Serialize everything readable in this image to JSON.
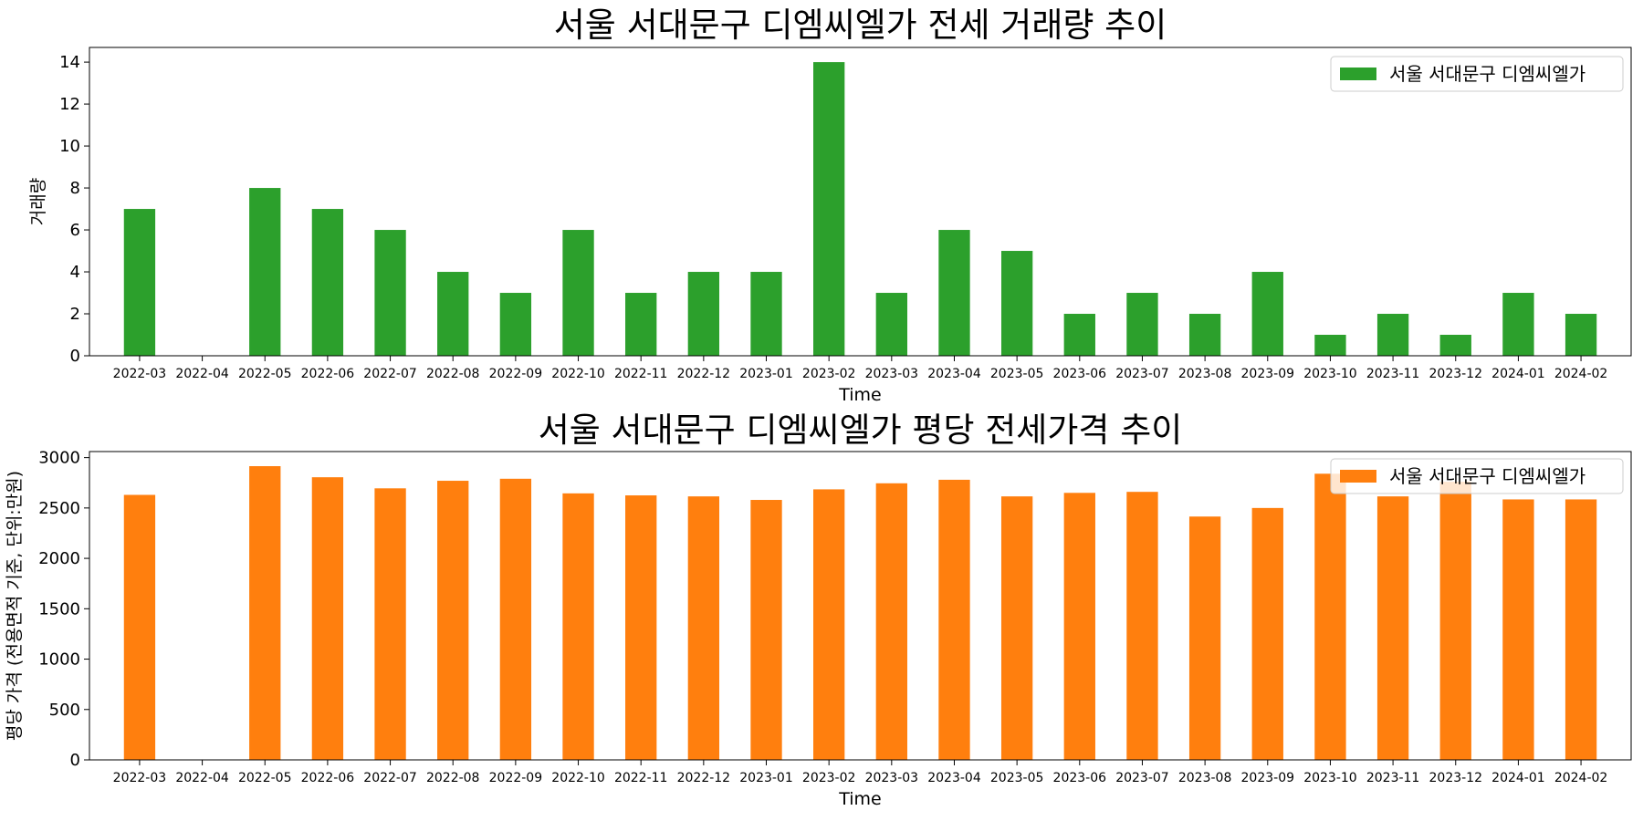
{
  "chart_data": [
    {
      "type": "bar",
      "title": "서울 서대문구 디엠씨엘가 전세 거래량 추이",
      "xlabel": "Time",
      "ylabel": "거래량",
      "categories": [
        "2022-03",
        "2022-04",
        "2022-05",
        "2022-06",
        "2022-07",
        "2022-08",
        "2022-09",
        "2022-10",
        "2022-11",
        "2022-12",
        "2023-01",
        "2023-02",
        "2023-03",
        "2023-04",
        "2023-05",
        "2023-06",
        "2023-07",
        "2023-08",
        "2023-09",
        "2023-10",
        "2023-11",
        "2023-12",
        "2024-01",
        "2024-02"
      ],
      "series": [
        {
          "name": "서울 서대문구 디엠씨엘가",
          "color": "#2ca02c",
          "values": [
            7,
            null,
            8,
            7,
            6,
            4,
            3,
            6,
            3,
            4,
            4,
            14,
            3,
            6,
            5,
            2,
            3,
            2,
            4,
            1,
            2,
            1,
            3,
            2
          ]
        }
      ],
      "ylim": [
        0,
        14.7
      ],
      "yticks": [
        0,
        2,
        4,
        6,
        8,
        10,
        12,
        14
      ],
      "grid": false,
      "legend_position": "top-right"
    },
    {
      "type": "bar",
      "title": "서울 서대문구 디엠씨엘가 평당 전세가격 추이",
      "xlabel": "Time",
      "ylabel": "평당 가격 (전용면적 기준, 단위:만원)",
      "categories": [
        "2022-03",
        "2022-04",
        "2022-05",
        "2022-06",
        "2022-07",
        "2022-08",
        "2022-09",
        "2022-10",
        "2022-11",
        "2022-12",
        "2023-01",
        "2023-02",
        "2023-03",
        "2023-04",
        "2023-05",
        "2023-06",
        "2023-07",
        "2023-08",
        "2023-09",
        "2023-10",
        "2023-11",
        "2023-12",
        "2024-01",
        "2024-02"
      ],
      "series": [
        {
          "name": "서울 서대문구 디엠씨엘가",
          "color": "#ff7f0e",
          "values": [
            2630,
            null,
            2915,
            2805,
            2695,
            2770,
            2790,
            2645,
            2625,
            2615,
            2580,
            2685,
            2745,
            2780,
            2615,
            2650,
            2660,
            2415,
            2500,
            2840,
            2615,
            2760,
            2585,
            2585
          ]
        }
      ],
      "ylim": [
        0,
        3060
      ],
      "yticks": [
        0,
        500,
        1000,
        1500,
        2000,
        2500,
        3000
      ],
      "grid": false,
      "legend_position": "top-right"
    }
  ]
}
